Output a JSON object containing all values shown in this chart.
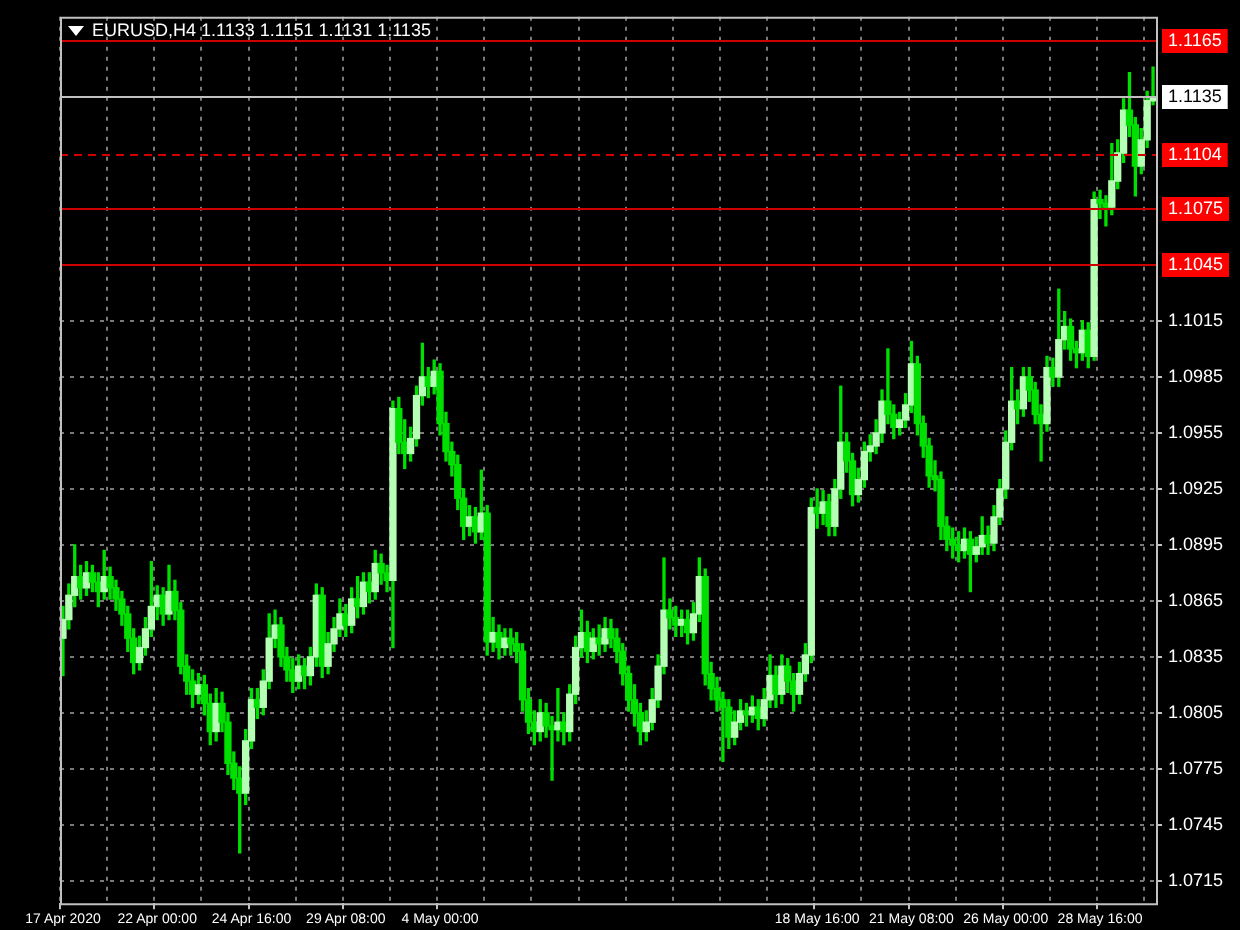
{
  "chart_data": {
    "type": "candlestick",
    "title": "EURUSD,H4 1.1133 1.1151 1.1131 1.1135",
    "color": "#00e000",
    "colors": [
      "#b4ffb4",
      "#b4ffb4",
      "#b4ffb4",
      "#00e000",
      "#b4ffb4",
      "#00e000",
      "#00e000",
      "#b4ffb4",
      "#00e000",
      "#00e000",
      "#00e000",
      "#00e000",
      "#00e000",
      "#b4ffb4",
      "#b4ffb4",
      "#b4ffb4",
      "#b4ffb4",
      "#00e000",
      "#b4ffb4",
      "#00e000",
      "#00e000",
      "#00e000",
      "#00e000",
      "#b4ffb4",
      "#00e000",
      "#00e000",
      "#b4ffb4",
      "#00e000",
      "#00e000",
      "#00e000",
      "#00e000",
      "#b4ffb4",
      "#b4ffb4",
      "#00e000",
      "#b4ffb4",
      "#b4ffb4",
      "#b4ffb4",
      "#00e000",
      "#00e000",
      "#00e000",
      "#b4ffb4",
      "#00e000",
      "#b4ffb4",
      "#b4ffb4",
      "#00e000",
      "#b4ffb4",
      "#b4ffb4",
      "#b4ffb4",
      "#00e000",
      "#b4ffb4",
      "#00e000",
      "#b4ffb4",
      "#00e000",
      "#b4ffb4",
      "#00e000",
      "#00e000",
      "#b4ffb4",
      "#00e000",
      "#00e000",
      "#b4ffb4",
      "#b4ffb4",
      "#b4ffb4",
      "#00e000",
      "#b4ffb4",
      "#00e000",
      "#00e000",
      "#00e000",
      "#00e000",
      "#00e000",
      "#b4ffb4",
      "#00e000",
      "#b4ffb4",
      "#00e000",
      "#b4ffb4",
      "#00e000",
      "#b4ffb4",
      "#00e000",
      "#00e000",
      "#00e000",
      "#00e000",
      "#00e000",
      "#b4ffb4",
      "#00e000",
      "#00e000",
      "#b4ffb4",
      "#00e000",
      "#b4ffb4",
      "#b4ffb4",
      "#b4ffb4",
      "#00e000",
      "#b4ffb4",
      "#00e000",
      "#b4ffb4",
      "#00e000",
      "#00e000",
      "#00e000",
      "#00e000",
      "#00e000",
      "#00e000",
      "#b4ffb4",
      "#b4ffb4",
      "#b4ffb4",
      "#b4ffb4",
      "#00e000",
      "#00e000",
      "#b4ffb4",
      "#00e000",
      "#b4ffb4",
      "#b4ffb4",
      "#00e000",
      "#00e000",
      "#00e000",
      "#00e000",
      "#00e000",
      "#b4ffb4",
      "#b4ffb4",
      "#00e000",
      "#b4ffb4",
      "#00e000",
      "#b4ffb4",
      "#b4ffb4",
      "#00e000",
      "#b4ffb4",
      "#00e000",
      "#00e000",
      "#b4ffb4",
      "#b4ffb4",
      "#b4ffb4",
      "#00e000",
      "#b4ffb4",
      "#00e000",
      "#b4ffb4",
      "#b4ffb4",
      "#00e000",
      "#00e000",
      "#b4ffb4",
      "#b4ffb4",
      "#b4ffb4",
      "#b4ffb4",
      "#b4ffb4",
      "#00e000",
      "#00e000",
      "#b4ffb4",
      "#b4ffb4",
      "#b4ffb4",
      "#00e000",
      "#00e000",
      "#00e000",
      "#00e000",
      "#00e000",
      "#00e000",
      "#00e000",
      "#00e000",
      "#b4ffb4",
      "#00e000",
      "#b4ffb4",
      "#b4ffb4",
      "#00e000",
      "#b4ffb4",
      "#b4ffb4",
      "#b4ffb4",
      "#b4ffb4",
      "#00e000",
      "#b4ffb4",
      "#00e000",
      "#00e000",
      "#00e000",
      "#b4ffb4",
      "#00e000",
      "#b4ffb4",
      "#b4ffb4",
      "#00e000",
      "#00e000",
      "#b4ffb4",
      "#00e000",
      "#b4ffb4",
      "#00e000",
      "#00e000",
      "#b4ffb4",
      "#b4ffb4",
      "#b4ffb4",
      "#00e000",
      "#00e000",
      "#b4ffb4",
      "#b4ffb4",
      "#b4ffb4"
    ],
    "ylim": [
      1.0703,
      1.1178
    ],
    "yticks": [
      1.0715,
      1.0745,
      1.0775,
      1.0805,
      1.0835,
      1.0865,
      1.0895,
      1.0925,
      1.0955,
      1.0985,
      1.1015
    ],
    "grid": true,
    "categories": [
      "17 Apr 2020",
      null,
      null,
      null,
      null,
      null,
      null,
      null,
      null,
      null,
      null,
      null,
      null,
      null,
      null,
      null,
      "22 Apr 00:00",
      null,
      null,
      null,
      null,
      null,
      null,
      null,
      null,
      null,
      null,
      null,
      null,
      null,
      null,
      null,
      "24 Apr 16:00",
      null,
      null,
      null,
      null,
      null,
      null,
      null,
      null,
      null,
      null,
      null,
      null,
      null,
      null,
      null,
      "29 Apr 08:00",
      null,
      null,
      null,
      null,
      null,
      null,
      null,
      null,
      null,
      null,
      null,
      null,
      null,
      null,
      null,
      "4 May 00:00",
      null,
      null,
      null,
      null,
      null,
      null,
      null,
      null,
      null,
      null,
      null,
      null,
      null,
      null,
      null,
      null,
      null,
      null,
      null,
      null,
      null,
      null,
      null,
      null,
      null,
      null,
      null,
      null,
      null,
      null,
      null,
      null,
      null,
      null,
      null,
      null,
      null,
      null,
      null,
      null,
      null,
      null,
      null,
      null,
      null,
      null,
      null,
      null,
      null,
      null,
      null,
      null,
      null,
      null,
      null,
      null,
      null,
      null,
      null,
      null,
      null,
      null,
      null,
      "18 May 16:00",
      null,
      null,
      null,
      null,
      null,
      null,
      null,
      null,
      null,
      null,
      null,
      null,
      null,
      null,
      null,
      "21 May 08:00",
      null,
      null,
      null,
      null,
      null,
      null,
      null,
      null,
      null,
      null,
      null,
      null,
      null,
      null,
      null,
      "26 May 00:00",
      null,
      null,
      null,
      null,
      null,
      null,
      null,
      null,
      null,
      null,
      null,
      null,
      null,
      null,
      null,
      "28 May 16:00",
      null,
      null,
      null,
      null,
      null,
      null,
      null,
      null,
      null
    ],
    "ohlc": [
      [
        1.0845,
        1.0862,
        1.0825,
        1.0855
      ],
      [
        1.0855,
        1.0874,
        1.085,
        1.0868
      ],
      [
        1.0868,
        1.0895,
        1.0862,
        1.0878
      ],
      [
        1.0878,
        1.0884,
        1.0866,
        1.0872
      ],
      [
        1.0872,
        1.0886,
        1.0868,
        1.088
      ],
      [
        1.088,
        1.0884,
        1.087,
        1.0875
      ],
      [
        1.0875,
        1.088,
        1.0862,
        1.087
      ],
      [
        1.087,
        1.0892,
        1.0866,
        1.0878
      ],
      [
        1.0878,
        1.0883,
        1.0866,
        1.0872
      ],
      [
        1.0872,
        1.0876,
        1.086,
        1.0866
      ],
      [
        1.0866,
        1.087,
        1.0852,
        1.0858
      ],
      [
        1.0858,
        1.0862,
        1.0838,
        1.0845
      ],
      [
        1.0845,
        1.085,
        1.0826,
        1.0832
      ],
      [
        1.0832,
        1.0846,
        1.0828,
        1.084
      ],
      [
        1.084,
        1.0856,
        1.0836,
        1.085
      ],
      [
        1.085,
        1.0886,
        1.0846,
        1.0862
      ],
      [
        1.0862,
        1.0873,
        1.0855,
        1.0868
      ],
      [
        1.0868,
        1.0872,
        1.0852,
        1.0858
      ],
      [
        1.0858,
        1.0884,
        1.0855,
        1.087
      ],
      [
        1.087,
        1.0876,
        1.0855,
        1.086
      ],
      [
        1.086,
        1.0864,
        1.0826,
        1.083
      ],
      [
        1.083,
        1.0836,
        1.0815,
        1.0822
      ],
      [
        1.0822,
        1.0828,
        1.0808,
        1.0815
      ],
      [
        1.0815,
        1.0826,
        1.081,
        1.082
      ],
      [
        1.082,
        1.0825,
        1.0804,
        1.081
      ],
      [
        1.081,
        1.0815,
        1.0788,
        1.0795
      ],
      [
        1.0795,
        1.0818,
        1.079,
        1.081
      ],
      [
        1.081,
        1.0816,
        1.0795,
        1.08
      ],
      [
        1.08,
        1.0805,
        1.0772,
        1.0778
      ],
      [
        1.0778,
        1.0784,
        1.0764,
        1.077
      ],
      [
        1.077,
        1.0776,
        1.073,
        1.0762
      ],
      [
        1.0762,
        1.0796,
        1.0756,
        1.079
      ],
      [
        1.079,
        1.0818,
        1.0786,
        1.0812
      ],
      [
        1.0812,
        1.0818,
        1.0802,
        1.0808
      ],
      [
        1.0808,
        1.0828,
        1.0804,
        1.0822
      ],
      [
        1.0822,
        1.0858,
        1.0818,
        1.0845
      ],
      [
        1.0845,
        1.086,
        1.084,
        1.0852
      ],
      [
        1.0852,
        1.0856,
        1.083,
        1.0835
      ],
      [
        1.0835,
        1.084,
        1.0822,
        1.0828
      ],
      [
        1.0828,
        1.0834,
        1.0816,
        1.0822
      ],
      [
        1.0822,
        1.0836,
        1.0818,
        1.083
      ],
      [
        1.083,
        1.0834,
        1.0818,
        1.0825
      ],
      [
        1.0825,
        1.084,
        1.082,
        1.0835
      ],
      [
        1.0835,
        1.0874,
        1.083,
        1.0868
      ],
      [
        1.0868,
        1.0872,
        1.0824,
        1.083
      ],
      [
        1.083,
        1.0848,
        1.0826,
        1.0842
      ],
      [
        1.0842,
        1.0856,
        1.0838,
        1.085
      ],
      [
        1.085,
        1.0866,
        1.0846,
        1.0858
      ],
      [
        1.0858,
        1.0863,
        1.0846,
        1.0852
      ],
      [
        1.0852,
        1.0872,
        1.0848,
        1.0866
      ],
      [
        1.0866,
        1.0878,
        1.0856,
        1.0862
      ],
      [
        1.0862,
        1.088,
        1.0858,
        1.0875
      ],
      [
        1.0875,
        1.088,
        1.0864,
        1.087
      ],
      [
        1.087,
        1.0892,
        1.0866,
        1.0885
      ],
      [
        1.0885,
        1.089,
        1.0874,
        1.088
      ],
      [
        1.088,
        1.0884,
        1.087,
        1.0876
      ],
      [
        1.0876,
        1.0972,
        1.084,
        1.0968
      ],
      [
        1.0968,
        1.0974,
        1.0944,
        1.095
      ],
      [
        1.095,
        1.0962,
        1.0936,
        1.0944
      ],
      [
        1.0944,
        1.0958,
        1.094,
        1.0952
      ],
      [
        1.0952,
        1.098,
        1.0948,
        1.0975
      ],
      [
        1.0975,
        1.1003,
        1.097,
        1.0985
      ],
      [
        1.0985,
        1.099,
        1.0974,
        1.098
      ],
      [
        1.098,
        1.0994,
        1.0976,
        1.0988
      ],
      [
        1.0988,
        1.0992,
        1.0954,
        1.096
      ],
      [
        1.096,
        1.0966,
        1.094,
        1.0945
      ],
      [
        1.0945,
        1.095,
        1.0932,
        1.0938
      ],
      [
        1.0938,
        1.0943,
        1.0914,
        1.092
      ],
      [
        1.092,
        1.0925,
        1.0898,
        1.0905
      ],
      [
        1.0905,
        1.0916,
        1.09,
        1.091
      ],
      [
        1.091,
        1.0915,
        1.0896,
        1.0902
      ],
      [
        1.0902,
        1.0935,
        1.0898,
        1.0912
      ],
      [
        1.0912,
        1.0916,
        1.0836,
        1.0843
      ],
      [
        1.0843,
        1.0856,
        1.0838,
        1.0848
      ],
      [
        1.0848,
        1.0852,
        1.0834,
        1.084
      ],
      [
        1.084,
        1.085,
        1.0836,
        1.0845
      ],
      [
        1.0845,
        1.085,
        1.0836,
        1.0842
      ],
      [
        1.0842,
        1.0848,
        1.0832,
        1.0838
      ],
      [
        1.0838,
        1.0842,
        1.0806,
        1.0812
      ],
      [
        1.0812,
        1.0818,
        1.0794,
        1.08
      ],
      [
        1.08,
        1.0806,
        1.0788,
        1.0795
      ],
      [
        1.0795,
        1.0812,
        1.079,
        1.0805
      ],
      [
        1.0805,
        1.081,
        1.0792,
        1.0798
      ],
      [
        1.0798,
        1.0803,
        1.0769,
        1.0796
      ],
      [
        1.0796,
        1.0818,
        1.079,
        1.08
      ],
      [
        1.08,
        1.0805,
        1.0788,
        1.0795
      ],
      [
        1.0795,
        1.082,
        1.079,
        1.0815
      ],
      [
        1.0815,
        1.0846,
        1.081,
        1.084
      ],
      [
        1.084,
        1.086,
        1.0835,
        1.0848
      ],
      [
        1.0848,
        1.0854,
        1.0832,
        1.0838
      ],
      [
        1.0838,
        1.085,
        1.0834,
        1.0845
      ],
      [
        1.0845,
        1.0852,
        1.0836,
        1.0842
      ],
      [
        1.0842,
        1.0856,
        1.0838,
        1.085
      ],
      [
        1.085,
        1.0855,
        1.084,
        1.0845
      ],
      [
        1.0845,
        1.085,
        1.0832,
        1.0838
      ],
      [
        1.0838,
        1.0842,
        1.082,
        1.0826
      ],
      [
        1.0826,
        1.083,
        1.0806,
        1.0812
      ],
      [
        1.0812,
        1.082,
        1.0798,
        1.0805
      ],
      [
        1.0805,
        1.081,
        1.0788,
        1.0795
      ],
      [
        1.0795,
        1.0806,
        1.079,
        1.08
      ],
      [
        1.08,
        1.0818,
        1.0796,
        1.0812
      ],
      [
        1.0812,
        1.0836,
        1.0808,
        1.083
      ],
      [
        1.083,
        1.0888,
        1.0826,
        1.086
      ],
      [
        1.086,
        1.0866,
        1.085,
        1.0856
      ],
      [
        1.0856,
        1.0862,
        1.0846,
        1.0852
      ],
      [
        1.0852,
        1.086,
        1.0846,
        1.0855
      ],
      [
        1.0855,
        1.086,
        1.0842,
        1.0848
      ],
      [
        1.0848,
        1.0864,
        1.0844,
        1.0858
      ],
      [
        1.0858,
        1.0888,
        1.0854,
        1.0878
      ],
      [
        1.0878,
        1.0882,
        1.082,
        1.0826
      ],
      [
        1.0826,
        1.0832,
        1.0812,
        1.0818
      ],
      [
        1.0818,
        1.0824,
        1.0806,
        1.0812
      ],
      [
        1.0812,
        1.0816,
        1.0779,
        1.0808
      ],
      [
        1.0808,
        1.0812,
        1.0786,
        1.0792
      ],
      [
        1.0792,
        1.0806,
        1.0788,
        1.08
      ],
      [
        1.08,
        1.0812,
        1.0796,
        1.0806
      ],
      [
        1.0806,
        1.081,
        1.0798,
        1.0804
      ],
      [
        1.0804,
        1.0814,
        1.08,
        1.0808
      ],
      [
        1.0808,
        1.0812,
        1.0796,
        1.0802
      ],
      [
        1.0802,
        1.0818,
        1.0798,
        1.0812
      ],
      [
        1.0812,
        1.0836,
        1.0808,
        1.0825
      ],
      [
        1.0825,
        1.083,
        1.0808,
        1.0815
      ],
      [
        1.0815,
        1.0836,
        1.081,
        1.083
      ],
      [
        1.083,
        1.0834,
        1.0816,
        1.0822
      ],
      [
        1.0822,
        1.0826,
        1.0806,
        1.0815
      ],
      [
        1.0815,
        1.0832,
        1.081,
        1.0826
      ],
      [
        1.0826,
        1.0842,
        1.0822,
        1.0836
      ],
      [
        1.0836,
        1.092,
        1.0832,
        1.0915
      ],
      [
        1.0915,
        1.0925,
        1.0904,
        1.0912
      ],
      [
        1.0912,
        1.0924,
        1.0906,
        1.0918
      ],
      [
        1.0918,
        1.0922,
        1.09,
        1.0905
      ],
      [
        1.0905,
        1.093,
        1.09,
        1.0925
      ],
      [
        1.0925,
        1.098,
        1.092,
        1.095
      ],
      [
        1.095,
        1.0955,
        1.0934,
        1.094
      ],
      [
        1.094,
        1.0944,
        1.0916,
        1.0922
      ],
      [
        1.0922,
        1.0936,
        1.0918,
        1.093
      ],
      [
        1.093,
        1.095,
        1.0926,
        1.0945
      ],
      [
        1.0945,
        1.0954,
        1.094,
        1.0948
      ],
      [
        1.0948,
        1.0962,
        1.0944,
        1.0955
      ],
      [
        1.0955,
        1.0978,
        1.095,
        1.0972
      ],
      [
        1.0972,
        1.1,
        1.096,
        1.0965
      ],
      [
        1.0965,
        1.097,
        1.0952,
        1.0958
      ],
      [
        1.0958,
        1.0966,
        1.0954,
        1.0962
      ],
      [
        1.0962,
        1.0976,
        1.0958,
        1.097
      ],
      [
        1.097,
        1.1004,
        1.0966,
        1.0992
      ],
      [
        1.0992,
        1.0996,
        1.0954,
        1.096
      ],
      [
        1.096,
        1.0964,
        1.0942,
        1.0948
      ],
      [
        1.0948,
        1.0952,
        1.0926,
        1.0932
      ],
      [
        1.0932,
        1.094,
        1.0924,
        1.093
      ],
      [
        1.093,
        1.0934,
        1.0898,
        1.0905
      ],
      [
        1.0905,
        1.091,
        1.0892,
        1.0898
      ],
      [
        1.0898,
        1.0904,
        1.0888,
        1.0895
      ],
      [
        1.0895,
        1.0902,
        1.0886,
        1.0892
      ],
      [
        1.0892,
        1.0904,
        1.0888,
        1.0898
      ],
      [
        1.0898,
        1.0902,
        1.087,
        1.089
      ],
      [
        1.089,
        1.0899,
        1.0886,
        1.0894
      ],
      [
        1.0894,
        1.091,
        1.089,
        1.09
      ],
      [
        1.09,
        1.0905,
        1.089,
        1.0896
      ],
      [
        1.0896,
        1.0916,
        1.0892,
        1.091
      ],
      [
        1.091,
        1.093,
        1.0906,
        1.0925
      ],
      [
        1.0925,
        1.0956,
        1.092,
        1.095
      ],
      [
        1.095,
        1.099,
        1.0946,
        1.0972
      ],
      [
        1.0972,
        1.0978,
        1.096,
        1.0968
      ],
      [
        1.0968,
        1.099,
        1.0964,
        1.0985
      ],
      [
        1.0985,
        1.099,
        1.0972,
        1.0978
      ],
      [
        1.0978,
        1.0982,
        1.096,
        1.0965
      ],
      [
        1.0965,
        1.097,
        1.094,
        1.096
      ],
      [
        1.096,
        1.0996,
        1.0956,
        1.099
      ],
      [
        1.099,
        1.0995,
        1.098,
        1.0985
      ],
      [
        1.0985,
        1.1032,
        1.098,
        1.1005
      ],
      [
        1.1005,
        1.102,
        1.1,
        1.1012
      ],
      [
        1.1012,
        1.1016,
        1.0994,
        1.1
      ],
      [
        1.1,
        1.1004,
        1.099,
        1.0998
      ],
      [
        1.0998,
        1.1015,
        1.0994,
        1.101
      ],
      [
        1.101,
        1.1014,
        1.099,
        1.0996
      ],
      [
        1.0996,
        1.1084,
        1.0994,
        1.108
      ],
      [
        1.108,
        1.1085,
        1.107,
        1.1078
      ],
      [
        1.1078,
        1.1082,
        1.1066,
        1.1076
      ],
      [
        1.1076,
        1.111,
        1.1072,
        1.109
      ],
      [
        1.109,
        1.1112,
        1.1086,
        1.1105
      ],
      [
        1.1105,
        1.1134,
        1.11,
        1.1128
      ],
      [
        1.1128,
        1.1148,
        1.1114,
        1.112
      ],
      [
        1.112,
        1.1124,
        1.1082,
        1.1098
      ],
      [
        1.1098,
        1.1118,
        1.1094,
        1.1112
      ],
      [
        1.1112,
        1.1138,
        1.1108,
        1.1133
      ],
      [
        1.1133,
        1.1151,
        1.1131,
        1.1135
      ]
    ],
    "ref_lines": [
      {
        "axis": "y",
        "value": 1.1165,
        "label": "1.1165",
        "color": "#d00000"
      },
      {
        "axis": "y",
        "value": 1.1135,
        "label": "1.1135",
        "color": "#c0c0c0"
      },
      {
        "axis": "y",
        "value": 1.1104,
        "label": "1.1104",
        "color": "#d00000",
        "line_style": "dashed"
      },
      {
        "axis": "y",
        "value": 1.1075,
        "label": "1.1075",
        "color": "#d00000"
      },
      {
        "axis": "y",
        "value": 1.1045,
        "label": "1.1045",
        "color": "#d00000"
      }
    ]
  }
}
